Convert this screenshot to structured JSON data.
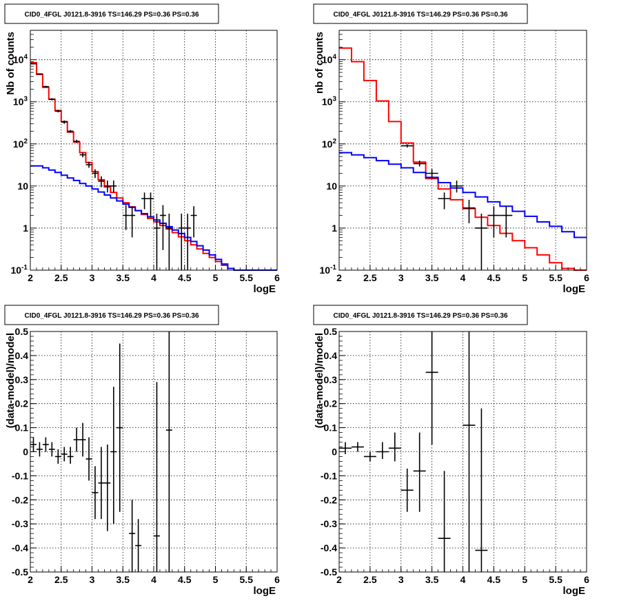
{
  "chart_data": [
    {
      "type": "histogram_log",
      "title": "CID0_4FGL J0121.8-3916 TS=146.29 PS=0.36 PS=0.36",
      "xlabel": "logE",
      "ylabel": "Nb of counts",
      "xlim": [
        2,
        6
      ],
      "ylim": [
        0.1,
        50000
      ],
      "log_y": true,
      "grid": true,
      "xticks": [
        "2",
        "2.5",
        "3",
        "3.5",
        "4",
        "4.5",
        "5",
        "5.5",
        "6"
      ],
      "yticks": [
        {
          "value": 0.1,
          "base": "10",
          "exp": "-1"
        },
        {
          "value": 1,
          "label": "1"
        },
        {
          "value": 10,
          "label": "10"
        },
        {
          "value": 100,
          "base": "10",
          "exp": "2"
        },
        {
          "value": 1000,
          "base": "10",
          "exp": "3"
        },
        {
          "value": 10000,
          "base": "10",
          "exp": "4"
        }
      ],
      "series": [
        {
          "color": "#ff0000",
          "kind": "step",
          "edges": [
            2.0,
            2.1,
            2.2,
            2.3,
            2.4,
            2.5,
            2.6,
            2.7,
            2.8,
            2.9,
            3.0,
            3.1,
            3.2,
            3.3,
            3.4,
            3.5,
            3.6,
            3.7,
            3.8,
            3.9,
            4.0,
            4.1,
            4.2,
            4.3,
            4.4,
            4.5,
            4.6,
            4.7,
            4.8,
            4.9,
            5.0,
            5.1,
            5.2,
            5.3,
            5.4,
            5.5,
            5.6,
            5.7,
            5.8,
            5.9,
            6.0
          ],
          "values": [
            8500,
            4500,
            2200,
            1150,
            620,
            340,
            190,
            110,
            62,
            36,
            22,
            14,
            9.5,
            7,
            5.2,
            4.0,
            3.2,
            2.6,
            2.1,
            1.7,
            1.4,
            1.15,
            0.95,
            0.78,
            0.62,
            0.5,
            0.4,
            0.32,
            0.25,
            0.2,
            0.16,
            0.13,
            0.11,
            0.1,
            0.1,
            0.1,
            0.1,
            0.1,
            0.1,
            0.1
          ]
        },
        {
          "color": "#0000ff",
          "kind": "step",
          "edges": [
            2.0,
            2.1,
            2.2,
            2.3,
            2.4,
            2.5,
            2.6,
            2.7,
            2.8,
            2.9,
            3.0,
            3.1,
            3.2,
            3.3,
            3.4,
            3.5,
            3.6,
            3.7,
            3.8,
            3.9,
            4.0,
            4.1,
            4.2,
            4.3,
            4.4,
            4.5,
            4.6,
            4.7,
            4.8,
            4.9,
            5.0,
            5.1,
            5.2,
            5.3,
            5.4,
            5.5,
            5.6,
            5.7,
            5.8,
            5.9,
            6.0
          ],
          "values": [
            30,
            30,
            27,
            24,
            21,
            18,
            15.5,
            13.5,
            11.5,
            10,
            8.5,
            7.2,
            6.1,
            5.2,
            4.4,
            3.7,
            3.1,
            2.6,
            2.2,
            1.85,
            1.55,
            1.3,
            1.08,
            0.9,
            0.74,
            0.6,
            0.48,
            0.38,
            0.3,
            0.23,
            0.18,
            0.14,
            0.11,
            0.1,
            0.1,
            0.1,
            0.1,
            0.1,
            0.1,
            0.1
          ]
        },
        {
          "color": "#000000",
          "kind": "errorbars",
          "points": [
            {
              "x": 2.05,
              "y": 8000,
              "xerr": 0.05,
              "ylo": 7800,
              "yhi": 8200
            },
            {
              "x": 2.15,
              "y": 4600,
              "xerr": 0.05,
              "ylo": 4450,
              "yhi": 4750
            },
            {
              "x": 2.25,
              "y": 2300,
              "xerr": 0.05,
              "ylo": 2200,
              "yhi": 2400
            },
            {
              "x": 2.35,
              "y": 1150,
              "xerr": 0.05,
              "ylo": 1080,
              "yhi": 1220
            },
            {
              "x": 2.45,
              "y": 600,
              "xerr": 0.05,
              "ylo": 560,
              "yhi": 640
            },
            {
              "x": 2.55,
              "y": 330,
              "xerr": 0.05,
              "ylo": 300,
              "yhi": 360
            },
            {
              "x": 2.65,
              "y": 200,
              "xerr": 0.05,
              "ylo": 185,
              "yhi": 215
            },
            {
              "x": 2.75,
              "y": 115,
              "xerr": 0.05,
              "ylo": 105,
              "yhi": 126
            },
            {
              "x": 2.85,
              "y": 55,
              "xerr": 0.05,
              "ylo": 48,
              "yhi": 62
            },
            {
              "x": 2.95,
              "y": 32,
              "xerr": 0.05,
              "ylo": 27,
              "yhi": 38
            },
            {
              "x": 3.05,
              "y": 20,
              "xerr": 0.05,
              "ylo": 15.5,
              "yhi": 25
            },
            {
              "x": 3.15,
              "y": 13,
              "xerr": 0.05,
              "ylo": 9.4,
              "yhi": 17
            },
            {
              "x": 3.25,
              "y": 10,
              "xerr": 0.05,
              "ylo": 7,
              "yhi": 13.5
            },
            {
              "x": 3.35,
              "y": 10,
              "xerr": 0.05,
              "ylo": 7,
              "yhi": 13.5
            },
            {
              "x": 3.55,
              "y": 2,
              "xerr": 0.05,
              "ylo": 0.9,
              "yhi": 3.5
            },
            {
              "x": 3.65,
              "y": 2,
              "xerr": 0.05,
              "ylo": 0.6,
              "yhi": 3.3
            },
            {
              "x": 3.85,
              "y": 5,
              "xerr": 0.05,
              "ylo": 2.8,
              "yhi": 7
            },
            {
              "x": 3.95,
              "y": 5,
              "xerr": 0.05,
              "ylo": 1.8,
              "yhi": 7
            },
            {
              "x": 4.05,
              "y": 1,
              "xerr": 0.05,
              "ylo": 0.1,
              "yhi": 2.2
            },
            {
              "x": 4.15,
              "y": 2,
              "xerr": 0.05,
              "ylo": 0.3,
              "yhi": 3.5
            },
            {
              "x": 4.25,
              "y": 1,
              "xerr": 0.05,
              "ylo": 0.1,
              "yhi": 2.2
            },
            {
              "x": 4.45,
              "y": 1,
              "xerr": 0.05,
              "ylo": 0.1,
              "yhi": 2.2
            },
            {
              "x": 4.55,
              "y": 1,
              "xerr": 0.05,
              "ylo": 0.1,
              "yhi": 2.2
            },
            {
              "x": 4.65,
              "y": 2,
              "xerr": 0.05,
              "ylo": 0.6,
              "yhi": 3.3
            }
          ]
        }
      ]
    },
    {
      "type": "histogram_log",
      "title": "CID0_4FGL J0121.8-3916 TS=146.29 PS=0.36 PS=0.36",
      "xlabel": "logE",
      "ylabel": "nb of counts",
      "xlim": [
        2,
        6
      ],
      "ylim": [
        0.1,
        50000
      ],
      "log_y": true,
      "grid": true,
      "xticks": [
        "2",
        "2.5",
        "3",
        "3.5",
        "4",
        "4.5",
        "5",
        "5.5",
        "6"
      ],
      "yticks": [
        {
          "value": 0.1,
          "base": "10",
          "exp": "-1"
        },
        {
          "value": 1,
          "label": "1"
        },
        {
          "value": 10,
          "label": "10"
        },
        {
          "value": 100,
          "base": "10",
          "exp": "2"
        },
        {
          "value": 1000,
          "base": "10",
          "exp": "3"
        },
        {
          "value": 10000,
          "base": "10",
          "exp": "4"
        }
      ],
      "series": [
        {
          "color": "#ff0000",
          "kind": "step",
          "edges": [
            2.0,
            2.2,
            2.4,
            2.6,
            2.8,
            3.0,
            3.2,
            3.4,
            3.6,
            3.8,
            4.0,
            4.2,
            4.4,
            4.6,
            4.8,
            5.0,
            5.2,
            5.4,
            5.6,
            5.8,
            6.0
          ],
          "values": [
            19000,
            9000,
            3200,
            1050,
            340,
            105,
            37,
            15,
            8.5,
            4.7,
            2.9,
            1.8,
            1.15,
            0.75,
            0.5,
            0.34,
            0.23,
            0.15,
            0.11,
            0.1
          ]
        },
        {
          "color": "#0000ff",
          "kind": "step",
          "edges": [
            2.0,
            2.2,
            2.4,
            2.6,
            2.8,
            3.0,
            3.2,
            3.4,
            3.6,
            3.8,
            4.0,
            4.2,
            4.4,
            4.6,
            4.8,
            5.0,
            5.2,
            5.4,
            5.6,
            5.8,
            6.0
          ],
          "values": [
            62,
            55,
            47,
            40,
            33,
            27,
            21,
            16,
            12,
            9,
            7,
            5.5,
            4.2,
            3.3,
            2.5,
            1.9,
            1.4,
            1.1,
            0.82,
            0.6
          ]
        },
        {
          "color": "#000000",
          "kind": "errorbars",
          "points": [
            {
              "x": 3.1,
              "y": 90,
              "xerr": 0.1,
              "ylo": 82,
              "yhi": 98
            },
            {
              "x": 3.3,
              "y": 34,
              "xerr": 0.1,
              "ylo": 29,
              "yhi": 40
            },
            {
              "x": 3.5,
              "y": 20,
              "xerr": 0.1,
              "ylo": 15.5,
              "yhi": 25
            },
            {
              "x": 3.7,
              "y": 5,
              "xerr": 0.1,
              "ylo": 2.8,
              "yhi": 7
            },
            {
              "x": 3.9,
              "y": 10,
              "xerr": 0.1,
              "ylo": 7,
              "yhi": 13.5
            },
            {
              "x": 4.1,
              "y": 3,
              "xerr": 0.1,
              "ylo": 1.3,
              "yhi": 4.7
            },
            {
              "x": 4.3,
              "y": 1,
              "xerr": 0.1,
              "ylo": 0.1,
              "yhi": 2.2
            },
            {
              "x": 4.5,
              "y": 2,
              "xerr": 0.1,
              "ylo": 0.6,
              "yhi": 3.3
            },
            {
              "x": 4.7,
              "y": 2,
              "xerr": 0.1,
              "ylo": 0.6,
              "yhi": 3.3
            }
          ]
        }
      ]
    },
    {
      "type": "residuals",
      "title": "CID0_4FGL J0121.8-3916 TS=146.29 PS=0.36 PS=0.36",
      "xlabel": "logE",
      "ylabel": "(data-model)/model",
      "xlim": [
        2,
        6
      ],
      "ylim": [
        -0.5,
        0.5
      ],
      "grid": true,
      "xticks": [
        "2",
        "2.5",
        "3",
        "3.5",
        "4",
        "4.5",
        "5",
        "5.5",
        "6"
      ],
      "yticks": [
        "-0.5",
        "-0.4",
        "-0.3",
        "-0.2",
        "-0.1",
        "0",
        "0.1",
        "0.2",
        "0.3",
        "0.4",
        "0.5"
      ],
      "series": [
        {
          "color": "#000000",
          "kind": "errorbars",
          "points": [
            {
              "x": 2.05,
              "y": 0.03,
              "xerr": 0.05,
              "ylo": 0.0,
              "yhi": 0.06
            },
            {
              "x": 2.15,
              "y": 0.01,
              "xerr": 0.05,
              "ylo": -0.02,
              "yhi": 0.04
            },
            {
              "x": 2.25,
              "y": 0.03,
              "xerr": 0.05,
              "ylo": 0.0,
              "yhi": 0.06
            },
            {
              "x": 2.35,
              "y": 0.01,
              "xerr": 0.05,
              "ylo": -0.02,
              "yhi": 0.04
            },
            {
              "x": 2.45,
              "y": -0.02,
              "xerr": 0.05,
              "ylo": -0.05,
              "yhi": 0.01
            },
            {
              "x": 2.55,
              "y": -0.01,
              "xerr": 0.05,
              "ylo": -0.04,
              "yhi": 0.02
            },
            {
              "x": 2.65,
              "y": -0.02,
              "xerr": 0.05,
              "ylo": -0.05,
              "yhi": 0.02
            },
            {
              "x": 2.75,
              "y": 0.05,
              "xerr": 0.05,
              "ylo": 0.0,
              "yhi": 0.1
            },
            {
              "x": 2.85,
              "y": 0.05,
              "xerr": 0.05,
              "ylo": -0.02,
              "yhi": 0.12
            },
            {
              "x": 2.95,
              "y": -0.03,
              "xerr": 0.05,
              "ylo": -0.12,
              "yhi": 0.06
            },
            {
              "x": 3.05,
              "y": -0.17,
              "xerr": 0.05,
              "ylo": -0.28,
              "yhi": -0.06
            },
            {
              "x": 3.15,
              "y": -0.13,
              "xerr": 0.05,
              "ylo": -0.28,
              "yhi": 0.02
            },
            {
              "x": 3.25,
              "y": -0.13,
              "xerr": 0.05,
              "ylo": -0.33,
              "yhi": 0.03
            },
            {
              "x": 3.35,
              "y": 0.0,
              "xerr": 0.05,
              "ylo": -0.3,
              "yhi": 0.27
            },
            {
              "x": 3.45,
              "y": 0.1,
              "xerr": 0.05,
              "ylo": -0.25,
              "yhi": 0.45
            },
            {
              "x": 3.65,
              "y": -0.34,
              "xerr": 0.05,
              "ylo": -0.5,
              "yhi": -0.2
            },
            {
              "x": 3.75,
              "y": -0.39,
              "xerr": 0.05,
              "ylo": -0.5,
              "yhi": -0.28
            },
            {
              "x": 4.05,
              "y": -0.35,
              "xerr": 0.05,
              "ylo": -0.5,
              "yhi": 0.29
            },
            {
              "x": 4.25,
              "y": 0.09,
              "xerr": 0.05,
              "ylo": -0.5,
              "yhi": 0.5
            }
          ]
        }
      ]
    },
    {
      "type": "residuals",
      "title": "CID0_4FGL J0121.8-3916 TS=146.29 PS=0.36 PS=0.36",
      "xlabel": "logE",
      "ylabel": "(data-model)/model",
      "xlim": [
        2,
        6
      ],
      "ylim": [
        -0.5,
        0.5
      ],
      "grid": true,
      "xticks": [
        "2",
        "2.5",
        "3",
        "3.5",
        "4",
        "4.5",
        "5",
        "5.5",
        "6"
      ],
      "yticks": [
        "-0.5",
        "-0.4",
        "-0.3",
        "-0.2",
        "-0.1",
        "0",
        "0.1",
        "0.2",
        "0.3",
        "0.4",
        "0.5"
      ],
      "series": [
        {
          "color": "#000000",
          "kind": "errorbars",
          "points": [
            {
              "x": 2.1,
              "y": 0.015,
              "xerr": 0.1,
              "ylo": -0.01,
              "yhi": 0.04
            },
            {
              "x": 2.3,
              "y": 0.02,
              "xerr": 0.1,
              "ylo": 0.0,
              "yhi": 0.04
            },
            {
              "x": 2.5,
              "y": -0.02,
              "xerr": 0.1,
              "ylo": -0.04,
              "yhi": 0.0
            },
            {
              "x": 2.7,
              "y": 0.0,
              "xerr": 0.1,
              "ylo": -0.03,
              "yhi": 0.04
            },
            {
              "x": 2.9,
              "y": 0.015,
              "xerr": 0.1,
              "ylo": -0.04,
              "yhi": 0.08
            },
            {
              "x": 3.1,
              "y": -0.16,
              "xerr": 0.1,
              "ylo": -0.25,
              "yhi": -0.07
            },
            {
              "x": 3.3,
              "y": -0.08,
              "xerr": 0.1,
              "ylo": -0.25,
              "yhi": 0.08
            },
            {
              "x": 3.5,
              "y": 0.33,
              "xerr": 0.1,
              "ylo": 0.03,
              "yhi": 0.5
            },
            {
              "x": 3.7,
              "y": -0.36,
              "xerr": 0.1,
              "ylo": -0.5,
              "yhi": -0.08
            },
            {
              "x": 4.1,
              "y": 0.11,
              "xerr": 0.1,
              "ylo": -0.5,
              "yhi": 0.5
            },
            {
              "x": 4.3,
              "y": -0.41,
              "xerr": 0.1,
              "ylo": -0.5,
              "yhi": 0.18
            }
          ]
        }
      ]
    }
  ]
}
